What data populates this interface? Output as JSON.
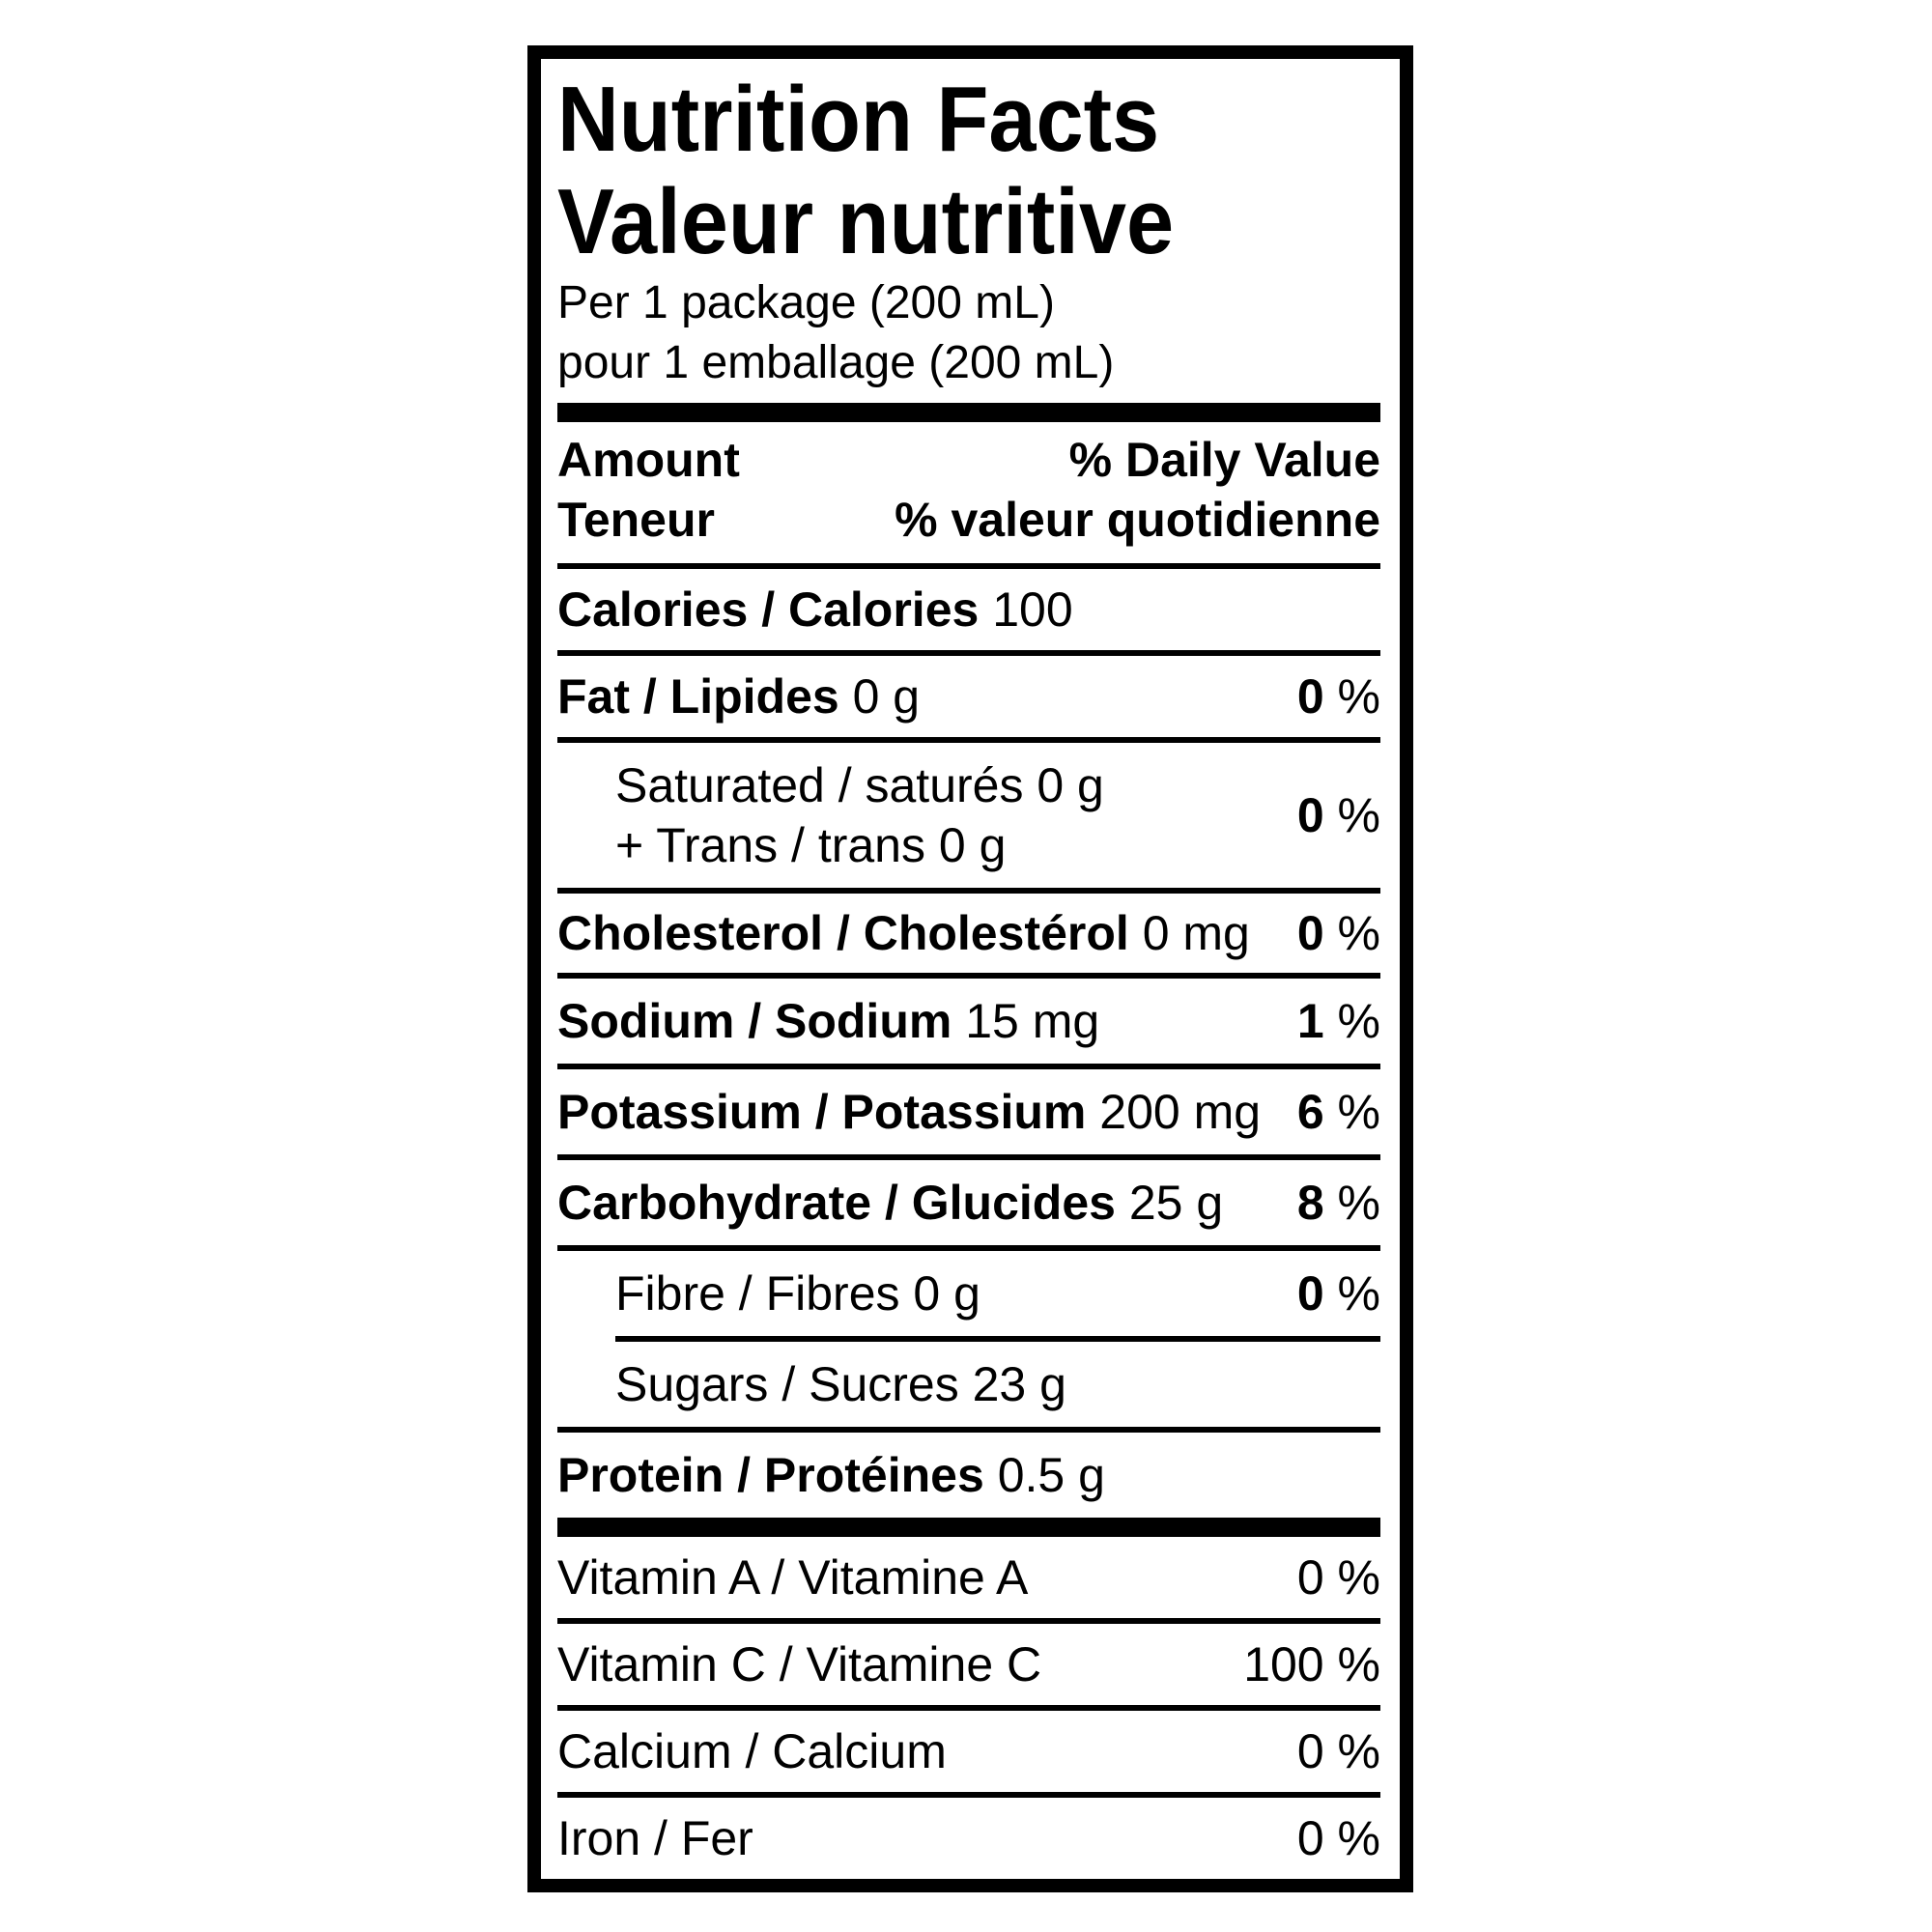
{
  "shared": {
    "percent_sign": "%"
  },
  "label": {
    "colors": {
      "ink": "#000000",
      "paper": "#ffffff"
    },
    "title_en": "Nutrition Facts",
    "title_fr": "Valeur nutritive",
    "serving_en": "Per 1 package (200 mL)",
    "serving_fr": "pour 1 emballage (200 mL)",
    "header": {
      "amount_en": "Amount",
      "amount_fr": "Teneur",
      "daily_value_en": "% Daily Value",
      "daily_value_fr": "% valeur quotidienne"
    },
    "rows": {
      "calories": {
        "name": "Calories / Calories",
        "amount": "100"
      },
      "fat": {
        "name": "Fat / Lipides",
        "amount": "0 g",
        "dv": "0"
      },
      "saturated": {
        "line1": "Saturated / saturés 0 g",
        "line2": "+ Trans / trans 0 g",
        "dv": "0"
      },
      "cholesterol": {
        "name": "Cholesterol / Cholestérol",
        "amount": "0 mg",
        "dv": "0"
      },
      "sodium": {
        "name": "Sodium / Sodium",
        "amount": "15 mg",
        "dv": "1"
      },
      "potassium": {
        "name": "Potassium / Potassium",
        "amount": "200 mg",
        "dv": "6"
      },
      "carbohydrate": {
        "name": "Carbohydrate / Glucides",
        "amount": "25 g",
        "dv": "8"
      },
      "fibre": {
        "name": "Fibre / Fibres",
        "amount": "0 g",
        "dv": "0"
      },
      "sugars": {
        "name": "Sugars / Sucres",
        "amount": "23 g"
      },
      "protein": {
        "name": "Protein / Protéines",
        "amount": "0.5 g"
      },
      "vitamin_a": {
        "name": "Vitamin A / Vitamine A",
        "dv": "0"
      },
      "vitamin_c": {
        "name": "Vitamin C / Vitamine C",
        "dv": "100"
      },
      "calcium": {
        "name": "Calcium / Calcium",
        "dv": "0"
      },
      "iron": {
        "name": "Iron / Fer",
        "dv": "0"
      }
    }
  }
}
